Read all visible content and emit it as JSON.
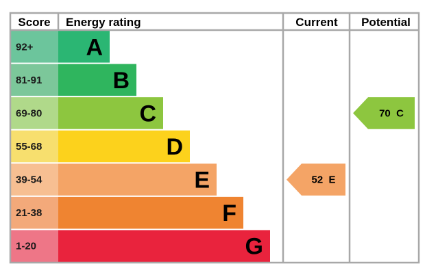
{
  "chart_data": {
    "type": "table",
    "headers": {
      "score": "Score",
      "rating": "Energy rating",
      "current": "Current",
      "potential": "Potential"
    },
    "bands": [
      {
        "score": "92+",
        "letter": "A",
        "color": "#2bb673",
        "score_bg": "#6cc59c"
      },
      {
        "score": "81-91",
        "letter": "B",
        "color": "#2fb55e",
        "score_bg": "#7cc79a"
      },
      {
        "score": "69-80",
        "letter": "C",
        "color": "#8dc63f",
        "score_bg": "#b0d98a"
      },
      {
        "score": "55-68",
        "letter": "D",
        "color": "#fcd21c",
        "score_bg": "#f7df6e"
      },
      {
        "score": "39-54",
        "letter": "E",
        "color": "#f4a466",
        "score_bg": "#f7bf92"
      },
      {
        "score": "21-38",
        "letter": "F",
        "color": "#ef8431",
        "score_bg": "#f3a97a"
      },
      {
        "score": "1-20",
        "letter": "G",
        "color": "#e9233d",
        "score_bg": "#ee7687"
      }
    ],
    "current": {
      "value": 52,
      "letter": "E",
      "label": "52  E",
      "color": "#f4a466"
    },
    "potential": {
      "value": 70,
      "letter": "C",
      "label": "70  C",
      "color": "#8dc63f"
    }
  }
}
